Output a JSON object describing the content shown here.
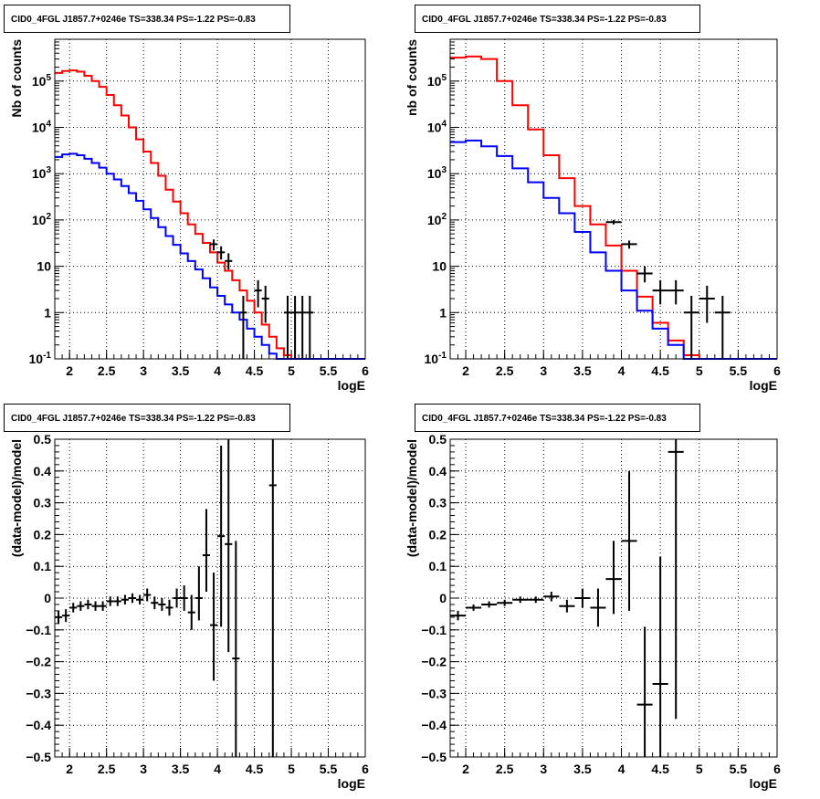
{
  "chart_data": [
    {
      "type": "line",
      "title": "CID0_4FGL J1857.7+0246e TS=338.34 PS=-1.22 PS=-0.83",
      "xlabel": "logE",
      "ylabel": "Nb of counts",
      "xlim": [
        1.8,
        6.0
      ],
      "ylim": [
        0.1,
        800000
      ],
      "yscale": "log",
      "grid": true,
      "x_ticks": [
        "2",
        "2.5",
        "3",
        "3.5",
        "4",
        "4.5",
        "5",
        "5.5",
        "6"
      ],
      "y_ticks": [
        "10^{-1}",
        "1",
        "10",
        "10^{2}",
        "10^{3}",
        "10^{4}",
        "10^{5}"
      ],
      "bin_edges": [
        1.8,
        1.9,
        2.0,
        2.1,
        2.2,
        2.3,
        2.4,
        2.5,
        2.6,
        2.7,
        2.8,
        2.9,
        3.0,
        3.1,
        3.2,
        3.3,
        3.4,
        3.5,
        3.6,
        3.7,
        3.8,
        3.9,
        4.0,
        4.1,
        4.2,
        4.3,
        4.4,
        4.5,
        4.6,
        4.7,
        4.8,
        4.9,
        5.0,
        5.1,
        5.2,
        5.3,
        5.4,
        5.5,
        5.6,
        5.7,
        5.8,
        5.9,
        6.0
      ],
      "series": [
        {
          "color": "#ff0000",
          "values": [
            150000,
            165000,
            170000,
            160000,
            130000,
            100000,
            75000,
            50000,
            30000,
            18000,
            10000,
            5500,
            3000,
            1700,
            900,
            450,
            250,
            140,
            80,
            50,
            32,
            20,
            12,
            8,
            5,
            3,
            1.8,
            1.0,
            0.55,
            0.3,
            0.17,
            0.12,
            0.1,
            0.1,
            0.1,
            0.1,
            0.1,
            0.1,
            0.1,
            0.1,
            0.1,
            0.1
          ]
        },
        {
          "color": "#0000ff",
          "values": [
            2300,
            2600,
            2700,
            2500,
            2100,
            1700,
            1350,
            1000,
            750,
            540,
            380,
            260,
            170,
            110,
            70,
            45,
            29,
            19,
            13,
            8.5,
            5.5,
            3.5,
            2.3,
            1.5,
            1.0,
            0.7,
            0.45,
            0.3,
            0.2,
            0.13,
            0.1,
            0.1,
            0.1,
            0.1,
            0.1,
            0.1,
            0.1,
            0.1,
            0.1,
            0.1,
            0.1,
            0.1
          ]
        }
      ],
      "data_points": [
        {
          "x": 3.95,
          "y": 30,
          "xerr": 0.05,
          "ylo": 22,
          "yhi": 38
        },
        {
          "x": 4.05,
          "y": 20,
          "xerr": 0.05,
          "ylo": 14,
          "yhi": 27
        },
        {
          "x": 4.15,
          "y": 13,
          "xerr": 0.05,
          "ylo": 8.5,
          "yhi": 19
        },
        {
          "x": 4.35,
          "y": 1,
          "xerr": 0.05,
          "ylo": 0.1,
          "yhi": 2.3
        },
        {
          "x": 4.55,
          "y": 3,
          "xerr": 0.05,
          "ylo": 1.3,
          "yhi": 5
        },
        {
          "x": 4.65,
          "y": 2,
          "xerr": 0.05,
          "ylo": 0.6,
          "yhi": 3.8
        },
        {
          "x": 4.95,
          "y": 1,
          "xerr": 0.05,
          "ylo": 0.1,
          "yhi": 2.3
        },
        {
          "x": 5.05,
          "y": 1,
          "xerr": 0.05,
          "ylo": 0.1,
          "yhi": 2.3
        },
        {
          "x": 5.15,
          "y": 1,
          "xerr": 0.05,
          "ylo": 0.1,
          "yhi": 2.3
        },
        {
          "x": 5.25,
          "y": 1,
          "xerr": 0.05,
          "ylo": 0.1,
          "yhi": 2.3
        }
      ]
    },
    {
      "type": "line",
      "title": "CID0_4FGL J1857.7+0246e TS=338.34 PS=-1.22 PS=-0.83",
      "xlabel": "logE",
      "ylabel": "nb of counts",
      "xlim": [
        1.8,
        6.0
      ],
      "ylim": [
        0.1,
        800000
      ],
      "yscale": "log",
      "grid": true,
      "x_ticks": [
        "2",
        "2.5",
        "3",
        "3.5",
        "4",
        "4.5",
        "5",
        "5.5",
        "6"
      ],
      "y_ticks": [
        "10^{-1}",
        "1",
        "10",
        "10^{2}",
        "10^{3}",
        "10^{4}",
        "10^{5}"
      ],
      "bin_edges": [
        1.8,
        2.0,
        2.2,
        2.4,
        2.6,
        2.8,
        3.0,
        3.2,
        3.4,
        3.6,
        3.8,
        4.0,
        4.2,
        4.4,
        4.6,
        4.8,
        5.0,
        5.2,
        5.4,
        5.6,
        5.8,
        6.0
      ],
      "series": [
        {
          "color": "#ff0000",
          "values": [
            320000,
            340000,
            300000,
            100000,
            30000,
            9000,
            2500,
            800,
            200,
            80,
            28,
            8,
            2.2,
            0.6,
            0.25,
            0.12,
            0.1,
            0.1,
            0.1,
            0.1,
            0.1
          ]
        },
        {
          "color": "#0000ff",
          "values": [
            4800,
            5200,
            3900,
            2400,
            1300,
            650,
            300,
            140,
            55,
            20,
            8,
            3,
            1.1,
            0.45,
            0.2,
            0.1,
            0.1,
            0.1,
            0.1,
            0.1,
            0.1
          ]
        }
      ],
      "data_points": [
        {
          "x": 3.9,
          "y": 90,
          "xerr": 0.1,
          "ylo": 80,
          "yhi": 100
        },
        {
          "x": 4.1,
          "y": 30,
          "xerr": 0.1,
          "ylo": 24,
          "yhi": 36
        },
        {
          "x": 4.3,
          "y": 7,
          "xerr": 0.1,
          "ylo": 4.5,
          "yhi": 10
        },
        {
          "x": 4.5,
          "y": 3,
          "xerr": 0.1,
          "ylo": 1.5,
          "yhi": 5
        },
        {
          "x": 4.7,
          "y": 3,
          "xerr": 0.1,
          "ylo": 1.5,
          "yhi": 5
        },
        {
          "x": 4.9,
          "y": 1,
          "xerr": 0.1,
          "ylo": 0.1,
          "yhi": 2.3
        },
        {
          "x": 5.1,
          "y": 2,
          "xerr": 0.1,
          "ylo": 0.6,
          "yhi": 3.8
        },
        {
          "x": 5.3,
          "y": 1,
          "xerr": 0.1,
          "ylo": 0.1,
          "yhi": 2.3
        }
      ]
    },
    {
      "type": "scatter",
      "title": "CID0_4FGL J1857.7+0246e TS=338.34 PS=-1.22 PS=-0.83",
      "xlabel": "logE",
      "ylabel": "(data-model)/model",
      "xlim": [
        1.8,
        6.0
      ],
      "ylim": [
        -0.5,
        0.5
      ],
      "grid": true,
      "x_ticks": [
        "2",
        "2.5",
        "3",
        "3.5",
        "4",
        "4.5",
        "5",
        "5.5",
        "6"
      ],
      "y_ticks": [
        "−0.5",
        "−0.4",
        "−0.3",
        "−0.2",
        "−0.1",
        "0",
        "0.1",
        "0.2",
        "0.3",
        "0.4",
        "0.5"
      ],
      "points": [
        {
          "x": 1.85,
          "y": -0.06,
          "xerr": 0.05,
          "ylo": -0.08,
          "yhi": -0.04
        },
        {
          "x": 1.95,
          "y": -0.055,
          "xerr": 0.05,
          "ylo": -0.075,
          "yhi": -0.035
        },
        {
          "x": 2.05,
          "y": -0.03,
          "xerr": 0.05,
          "ylo": -0.045,
          "yhi": -0.015
        },
        {
          "x": 2.15,
          "y": -0.025,
          "xerr": 0.05,
          "ylo": -0.04,
          "yhi": -0.01
        },
        {
          "x": 2.25,
          "y": -0.02,
          "xerr": 0.05,
          "ylo": -0.035,
          "yhi": -0.005
        },
        {
          "x": 2.35,
          "y": -0.025,
          "xerr": 0.05,
          "ylo": -0.04,
          "yhi": -0.01
        },
        {
          "x": 2.45,
          "y": -0.025,
          "xerr": 0.05,
          "ylo": -0.04,
          "yhi": -0.01
        },
        {
          "x": 2.55,
          "y": -0.01,
          "xerr": 0.05,
          "ylo": -0.025,
          "yhi": 0.005
        },
        {
          "x": 2.65,
          "y": -0.01,
          "xerr": 0.05,
          "ylo": -0.025,
          "yhi": 0.005
        },
        {
          "x": 2.75,
          "y": -0.005,
          "xerr": 0.05,
          "ylo": -0.02,
          "yhi": 0.01
        },
        {
          "x": 2.85,
          "y": 0.0,
          "xerr": 0.05,
          "ylo": -0.015,
          "yhi": 0.015
        },
        {
          "x": 2.95,
          "y": -0.005,
          "xerr": 0.05,
          "ylo": -0.02,
          "yhi": 0.01
        },
        {
          "x": 3.05,
          "y": 0.01,
          "xerr": 0.05,
          "ylo": -0.01,
          "yhi": 0.03
        },
        {
          "x": 3.15,
          "y": -0.015,
          "xerr": 0.05,
          "ylo": -0.035,
          "yhi": 0.005
        },
        {
          "x": 3.25,
          "y": -0.02,
          "xerr": 0.05,
          "ylo": -0.04,
          "yhi": 0.0
        },
        {
          "x": 3.35,
          "y": -0.03,
          "xerr": 0.05,
          "ylo": -0.055,
          "yhi": -0.005
        },
        {
          "x": 3.45,
          "y": 0.0,
          "xerr": 0.05,
          "ylo": -0.03,
          "yhi": 0.03
        },
        {
          "x": 3.55,
          "y": 0.0,
          "xerr": 0.05,
          "ylo": -0.04,
          "yhi": 0.04
        },
        {
          "x": 3.65,
          "y": -0.045,
          "xerr": 0.05,
          "ylo": -0.1,
          "yhi": 0.01
        },
        {
          "x": 3.75,
          "y": 0.0,
          "xerr": 0.05,
          "ylo": -0.07,
          "yhi": 0.1
        },
        {
          "x": 3.85,
          "y": 0.135,
          "xerr": 0.05,
          "ylo": 0.02,
          "yhi": 0.28
        },
        {
          "x": 3.95,
          "y": -0.085,
          "xerr": 0.05,
          "ylo": -0.26,
          "yhi": 0.08
        },
        {
          "x": 4.05,
          "y": 0.195,
          "xerr": 0.05,
          "ylo": -0.09,
          "yhi": 0.48
        },
        {
          "x": 4.15,
          "y": 0.17,
          "xerr": 0.05,
          "ylo": -0.17,
          "yhi": 0.5
        },
        {
          "x": 4.25,
          "y": -0.19,
          "xerr": 0.05,
          "ylo": -0.5,
          "yhi": 0.18
        },
        {
          "x": 4.75,
          "y": 0.355,
          "xerr": 0.05,
          "ylo": -0.5,
          "yhi": 0.5
        }
      ]
    },
    {
      "type": "scatter",
      "title": "CID0_4FGL J1857.7+0246e TS=338.34 PS=-1.22 PS=-0.83",
      "xlabel": "logE",
      "ylabel": "(data-model)/model",
      "xlim": [
        1.8,
        6.0
      ],
      "ylim": [
        -0.5,
        0.5
      ],
      "grid": true,
      "x_ticks": [
        "2",
        "2.5",
        "3",
        "3.5",
        "4",
        "4.5",
        "5",
        "5.5",
        "6"
      ],
      "y_ticks": [
        "−0.5",
        "−0.4",
        "−0.3",
        "−0.2",
        "−0.1",
        "0",
        "0.1",
        "0.2",
        "0.3",
        "0.4",
        "0.5"
      ],
      "points": [
        {
          "x": 1.9,
          "y": -0.055,
          "xerr": 0.1,
          "ylo": -0.07,
          "yhi": -0.04
        },
        {
          "x": 2.1,
          "y": -0.03,
          "xerr": 0.1,
          "ylo": -0.04,
          "yhi": -0.02
        },
        {
          "x": 2.3,
          "y": -0.02,
          "xerr": 0.1,
          "ylo": -0.03,
          "yhi": -0.01
        },
        {
          "x": 2.5,
          "y": -0.015,
          "xerr": 0.1,
          "ylo": -0.025,
          "yhi": -0.005
        },
        {
          "x": 2.7,
          "y": -0.005,
          "xerr": 0.1,
          "ylo": -0.015,
          "yhi": 0.005
        },
        {
          "x": 2.9,
          "y": -0.005,
          "xerr": 0.1,
          "ylo": -0.015,
          "yhi": 0.005
        },
        {
          "x": 3.1,
          "y": 0.005,
          "xerr": 0.1,
          "ylo": -0.01,
          "yhi": 0.02
        },
        {
          "x": 3.3,
          "y": -0.025,
          "xerr": 0.1,
          "ylo": -0.045,
          "yhi": -0.005
        },
        {
          "x": 3.5,
          "y": 0.0,
          "xerr": 0.1,
          "ylo": -0.03,
          "yhi": 0.03
        },
        {
          "x": 3.7,
          "y": -0.03,
          "xerr": 0.1,
          "ylo": -0.09,
          "yhi": 0.03
        },
        {
          "x": 3.9,
          "y": 0.06,
          "xerr": 0.1,
          "ylo": -0.05,
          "yhi": 0.18
        },
        {
          "x": 4.1,
          "y": 0.18,
          "xerr": 0.1,
          "ylo": -0.04,
          "yhi": 0.4
        },
        {
          "x": 4.3,
          "y": -0.335,
          "xerr": 0.1,
          "ylo": -0.5,
          "yhi": -0.09
        },
        {
          "x": 4.5,
          "y": -0.27,
          "xerr": 0.1,
          "ylo": -0.5,
          "yhi": 0.13
        },
        {
          "x": 4.7,
          "y": 0.46,
          "xerr": 0.1,
          "ylo": -0.38,
          "yhi": 0.5
        }
      ]
    }
  ]
}
